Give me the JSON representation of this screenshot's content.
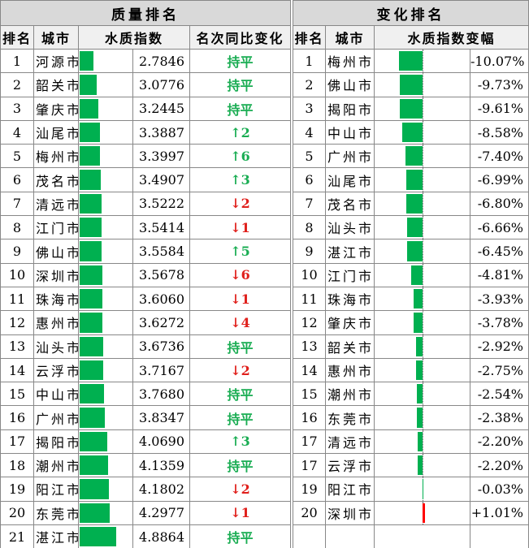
{
  "colors": {
    "bar_green": "#00b050",
    "bar_red": "#ff0000",
    "up_text": "#1aad53",
    "down_text": "#e0201c"
  },
  "quality": {
    "title": "质量排名",
    "headers": [
      "排名",
      "城市",
      "水质指数",
      "名次同比变化"
    ],
    "rows": [
      {
        "rank": "1",
        "city": "河源市",
        "value": 2.7846,
        "value_text": "2.7846",
        "change": "持平",
        "dir": "flat"
      },
      {
        "rank": "2",
        "city": "韶关市",
        "value": 3.0776,
        "value_text": "3.0776",
        "change": "持平",
        "dir": "flat"
      },
      {
        "rank": "3",
        "city": "肇庆市",
        "value": 3.2445,
        "value_text": "3.2445",
        "change": "持平",
        "dir": "flat"
      },
      {
        "rank": "4",
        "city": "汕尾市",
        "value": 3.3887,
        "value_text": "3.3887",
        "change": "↑2",
        "dir": "up"
      },
      {
        "rank": "5",
        "city": "梅州市",
        "value": 3.3997,
        "value_text": "3.3997",
        "change": "↑6",
        "dir": "up"
      },
      {
        "rank": "6",
        "city": "茂名市",
        "value": 3.4907,
        "value_text": "3.4907",
        "change": "↑3",
        "dir": "up"
      },
      {
        "rank": "7",
        "city": "清远市",
        "value": 3.5222,
        "value_text": "3.5222",
        "change": "↓2",
        "dir": "down"
      },
      {
        "rank": "8",
        "city": "江门市",
        "value": 3.5414,
        "value_text": "3.5414",
        "change": "↓1",
        "dir": "down"
      },
      {
        "rank": "9",
        "city": "佛山市",
        "value": 3.5584,
        "value_text": "3.5584",
        "change": "↑5",
        "dir": "up"
      },
      {
        "rank": "10",
        "city": "深圳市",
        "value": 3.5678,
        "value_text": "3.5678",
        "change": "↓6",
        "dir": "down"
      },
      {
        "rank": "11",
        "city": "珠海市",
        "value": 3.606,
        "value_text": "3.6060",
        "change": "↓1",
        "dir": "down"
      },
      {
        "rank": "12",
        "city": "惠州市",
        "value": 3.6272,
        "value_text": "3.6272",
        "change": "↓4",
        "dir": "down"
      },
      {
        "rank": "13",
        "city": "汕头市",
        "value": 3.6736,
        "value_text": "3.6736",
        "change": "持平",
        "dir": "flat"
      },
      {
        "rank": "14",
        "city": "云浮市",
        "value": 3.7167,
        "value_text": "3.7167",
        "change": "↓2",
        "dir": "down"
      },
      {
        "rank": "15",
        "city": "中山市",
        "value": 3.768,
        "value_text": "3.7680",
        "change": "持平",
        "dir": "flat"
      },
      {
        "rank": "16",
        "city": "广州市",
        "value": 3.8347,
        "value_text": "3.8347",
        "change": "持平",
        "dir": "flat"
      },
      {
        "rank": "17",
        "city": "揭阳市",
        "value": 4.069,
        "value_text": "4.0690",
        "change": "↑3",
        "dir": "up"
      },
      {
        "rank": "18",
        "city": "潮州市",
        "value": 4.1359,
        "value_text": "4.1359",
        "change": "持平",
        "dir": "flat"
      },
      {
        "rank": "19",
        "city": "阳江市",
        "value": 4.1802,
        "value_text": "4.1802",
        "change": "↓2",
        "dir": "down"
      },
      {
        "rank": "20",
        "city": "东莞市",
        "value": 4.2977,
        "value_text": "4.2977",
        "change": "↓1",
        "dir": "down"
      },
      {
        "rank": "21",
        "city": "湛江市",
        "value": 4.8864,
        "value_text": "4.8864",
        "change": "持平",
        "dir": "flat"
      }
    ]
  },
  "change": {
    "title": "变化排名",
    "headers": [
      "排名",
      "城市",
      "水质指数变幅"
    ],
    "rows": [
      {
        "rank": "1",
        "city": "梅州市",
        "value": -10.07,
        "value_text": "-10.07%"
      },
      {
        "rank": "2",
        "city": "佛山市",
        "value": -9.73,
        "value_text": "-9.73%"
      },
      {
        "rank": "3",
        "city": "揭阳市",
        "value": -9.61,
        "value_text": "-9.61%"
      },
      {
        "rank": "4",
        "city": "中山市",
        "value": -8.58,
        "value_text": "-8.58%"
      },
      {
        "rank": "5",
        "city": "广州市",
        "value": -7.4,
        "value_text": "-7.40%"
      },
      {
        "rank": "6",
        "city": "汕尾市",
        "value": -6.99,
        "value_text": "-6.99%"
      },
      {
        "rank": "7",
        "city": "茂名市",
        "value": -6.8,
        "value_text": "-6.80%"
      },
      {
        "rank": "8",
        "city": "汕头市",
        "value": -6.66,
        "value_text": "-6.66%"
      },
      {
        "rank": "9",
        "city": "湛江市",
        "value": -6.45,
        "value_text": "-6.45%"
      },
      {
        "rank": "10",
        "city": "江门市",
        "value": -4.81,
        "value_text": "-4.81%"
      },
      {
        "rank": "11",
        "city": "珠海市",
        "value": -3.93,
        "value_text": "-3.93%"
      },
      {
        "rank": "12",
        "city": "肇庆市",
        "value": -3.78,
        "value_text": "-3.78%"
      },
      {
        "rank": "13",
        "city": "韶关市",
        "value": -2.92,
        "value_text": "-2.92%"
      },
      {
        "rank": "14",
        "city": "惠州市",
        "value": -2.75,
        "value_text": "-2.75%"
      },
      {
        "rank": "15",
        "city": "潮州市",
        "value": -2.54,
        "value_text": "-2.54%"
      },
      {
        "rank": "16",
        "city": "东莞市",
        "value": -2.38,
        "value_text": "-2.38%"
      },
      {
        "rank": "17",
        "city": "清远市",
        "value": -2.2,
        "value_text": "-2.20%"
      },
      {
        "rank": "17",
        "city": "云浮市",
        "value": -2.2,
        "value_text": "-2.20%"
      },
      {
        "rank": "19",
        "city": "阳江市",
        "value": -0.03,
        "value_text": "-0.03%"
      },
      {
        "rank": "20",
        "city": "深圳市",
        "value": 1.01,
        "value_text": "+1.01%"
      }
    ]
  }
}
